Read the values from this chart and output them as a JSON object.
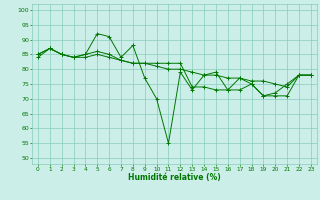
{
  "bg_color": "#cceee8",
  "grid_color": "#88ccbb",
  "line_color": "#007700",
  "marker_color": "#007700",
  "xlabel": "Humidité relative (%)",
  "xlabel_color": "#007700",
  "tick_color": "#007700",
  "xlim": [
    -0.5,
    23.5
  ],
  "ylim": [
    48,
    102
  ],
  "yticks": [
    50,
    55,
    60,
    65,
    70,
    75,
    80,
    85,
    90,
    95,
    100
  ],
  "xticks": [
    0,
    1,
    2,
    3,
    4,
    5,
    6,
    7,
    8,
    9,
    10,
    11,
    12,
    13,
    14,
    15,
    16,
    17,
    18,
    19,
    20,
    21,
    22,
    23
  ],
  "series": [
    [
      85,
      87,
      85,
      84,
      85,
      92,
      91,
      84,
      88,
      77,
      70,
      55,
      79,
      73,
      78,
      79,
      73,
      77,
      75,
      71,
      72,
      75,
      78,
      78
    ],
    [
      85,
      87,
      85,
      84,
      85,
      86,
      85,
      83,
      82,
      82,
      81,
      80,
      80,
      79,
      78,
      78,
      77,
      77,
      76,
      76,
      75,
      74,
      78,
      78
    ],
    [
      84,
      87,
      85,
      84,
      84,
      85,
      84,
      83,
      82,
      82,
      82,
      82,
      82,
      74,
      74,
      73,
      73,
      73,
      75,
      71,
      71,
      71,
      78,
      78
    ]
  ]
}
